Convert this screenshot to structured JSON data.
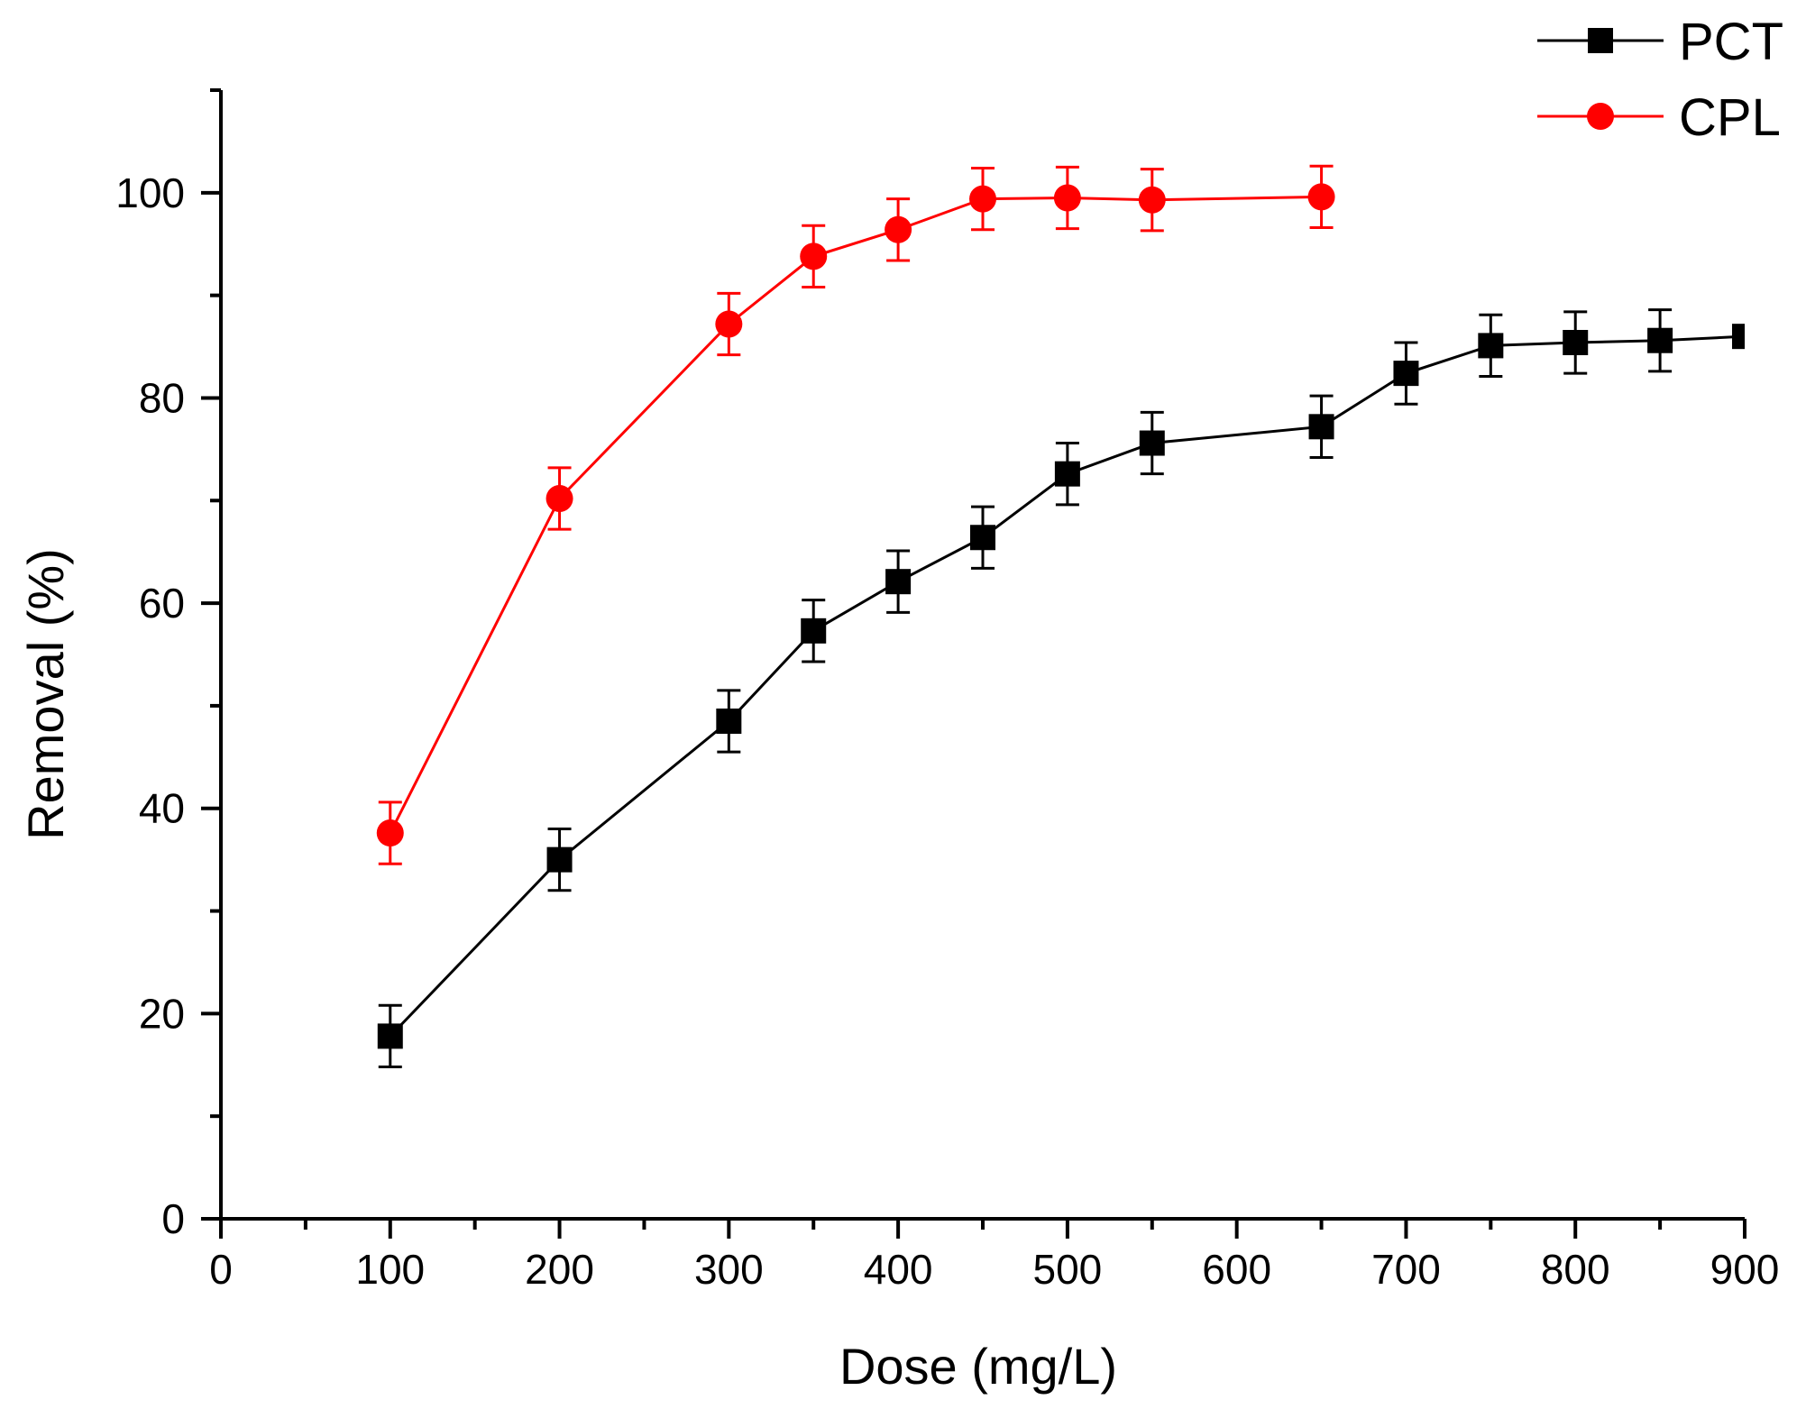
{
  "chart_data": {
    "type": "line",
    "title": "",
    "xlabel": "Dose (mg/L)",
    "ylabel": "Removal (%)",
    "xlim": [
      0,
      900
    ],
    "ylim": [
      0,
      110
    ],
    "x_ticks": [
      0,
      100,
      200,
      300,
      400,
      500,
      600,
      700,
      800,
      900
    ],
    "x_tick_labels": [
      "0",
      "100",
      "200",
      "300",
      "400",
      "500",
      "600",
      "700",
      "800",
      "900"
    ],
    "y_ticks": [
      0,
      20,
      40,
      60,
      80,
      100
    ],
    "y_tick_labels": [
      "0",
      "20",
      "40",
      "60",
      "80",
      "100"
    ],
    "grid": false,
    "legend_position": "top-right",
    "series": [
      {
        "name": "PCT",
        "color": "#000000",
        "marker": "square",
        "x": [
          100,
          200,
          300,
          350,
          400,
          450,
          500,
          550,
          650,
          700,
          750,
          800,
          850,
          900
        ],
        "y": [
          17.8,
          35.0,
          48.5,
          57.3,
          62.1,
          66.4,
          72.6,
          75.6,
          77.2,
          82.4,
          85.1,
          85.4,
          85.6,
          86.0
        ],
        "error": [
          3,
          3,
          3,
          3,
          3,
          3,
          3,
          3,
          3,
          3,
          3,
          3,
          3,
          0
        ]
      },
      {
        "name": "CPL",
        "color": "#ff0000",
        "marker": "circle",
        "x": [
          100,
          200,
          300,
          350,
          400,
          450,
          500,
          550,
          650
        ],
        "y": [
          37.6,
          70.2,
          87.2,
          93.8,
          96.4,
          99.4,
          99.5,
          99.3,
          99.6
        ],
        "error": [
          3,
          3,
          3,
          3,
          3,
          3,
          3,
          3,
          3
        ]
      }
    ]
  }
}
